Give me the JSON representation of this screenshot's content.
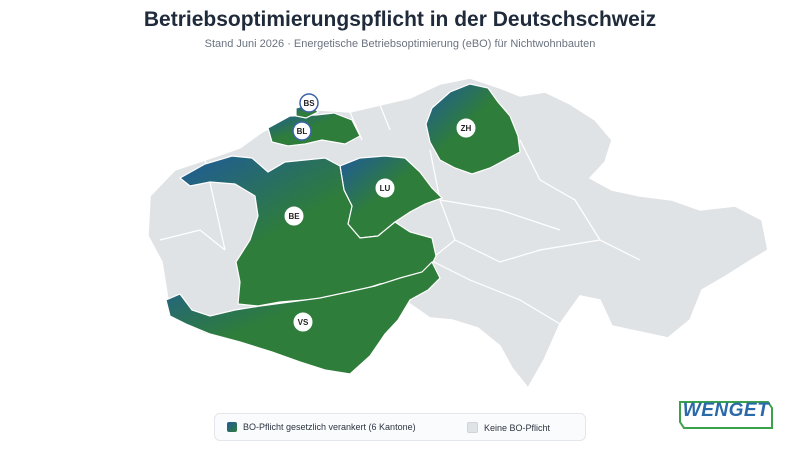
{
  "header": {
    "title": "Betriebsoptimierungspflicht in der Deutschschweiz",
    "subtitle": "Stand Juni 2026 · Energetische Betriebsoptimierung (eBO) für Nichtwohnbauten"
  },
  "map": {
    "cantons_with_obligation": [
      "BS",
      "BL",
      "ZH",
      "LU",
      "BE",
      "VS"
    ],
    "labels": {
      "bs": "BS",
      "bl": "BL",
      "zh": "ZH",
      "lu": "LU",
      "be": "BE",
      "vs": "VS"
    },
    "colors": {
      "obligation_gradient_start": "#1f5a9a",
      "obligation_gradient_end": "#2f7d3a",
      "no_obligation": "#e0e3e6",
      "border": "#ffffff"
    }
  },
  "legend": {
    "obligation": "BO-Pflicht gesetzlich verankert (6 Kantone)",
    "none": "Keine BO-Pflicht"
  },
  "logo": {
    "text": "WENGET"
  }
}
